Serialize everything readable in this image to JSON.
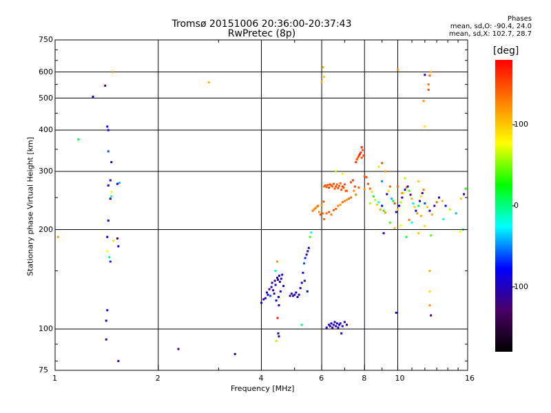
{
  "title_line1": "Tromsø 20151006 20:36:00-20:37:43",
  "title_line2": "RwPretec (8p)",
  "info": {
    "heading": "Phases",
    "line1": "mean, sd,O: -90.4, 24.0",
    "line2": "mean, sd,X: 102.7, 28.7"
  },
  "colorbar": {
    "unit": "[deg]",
    "range": [
      -180,
      180
    ],
    "ticks": [
      "100",
      "0",
      "-100"
    ],
    "colors": [
      "#000000",
      "#4a0066",
      "#0000ff",
      "#00ffff",
      "#00ff00",
      "#ffff00",
      "#ff8000",
      "#ff0000"
    ]
  },
  "chart_data": {
    "type": "scatter",
    "title": "Tromsø 20151006 20:36:00-20:37:43",
    "subtitle": "RwPretec (8p)",
    "xlabel": "Frequency [MHz]",
    "ylabel": "Stationary phase Virtual Height [km]",
    "xscale": "log",
    "yscale": "log",
    "xlim": [
      1,
      16
    ],
    "ylim": [
      75,
      750
    ],
    "xticks": [
      1,
      2,
      4,
      6,
      8,
      10,
      16
    ],
    "yticks": [
      75,
      100,
      200,
      300,
      400,
      500,
      600,
      750
    ],
    "grid": true,
    "color_variable": "phase [deg]",
    "points": [
      [
        1.02,
        190,
        120
      ],
      [
        1.17,
        375,
        10
      ],
      [
        1.29,
        505,
        -90
      ],
      [
        1.4,
        545,
        -130
      ],
      [
        1.47,
        600,
        120
      ],
      [
        1.42,
        410,
        -90
      ],
      [
        1.43,
        400,
        -90
      ],
      [
        1.43,
        345,
        -60
      ],
      [
        1.46,
        320,
        -110
      ],
      [
        1.45,
        282,
        -90
      ],
      [
        1.43,
        272,
        -90
      ],
      [
        1.46,
        260,
        80
      ],
      [
        1.46,
        252,
        -10
      ],
      [
        1.45,
        248,
        -120
      ],
      [
        1.52,
        275,
        -80
      ],
      [
        1.54,
        277,
        -40
      ],
      [
        1.43,
        213,
        -90
      ],
      [
        1.42,
        190,
        -90
      ],
      [
        1.48,
        185,
        90
      ],
      [
        1.52,
        188,
        -130
      ],
      [
        1.53,
        178,
        -90
      ],
      [
        1.42,
        172,
        80
      ],
      [
        1.44,
        165,
        0
      ],
      [
        1.45,
        160,
        -70
      ],
      [
        1.42,
        114,
        -90
      ],
      [
        1.41,
        106,
        -90
      ],
      [
        1.41,
        93,
        -110
      ],
      [
        1.53,
        80,
        -110
      ],
      [
        2.29,
        87,
        -110
      ],
      [
        2.81,
        558,
        110
      ],
      [
        3.35,
        84,
        -120
      ],
      [
        4.0,
        120,
        -100
      ],
      [
        4.06,
        123,
        -90
      ],
      [
        4.11,
        124,
        -110
      ],
      [
        4.15,
        129,
        -100
      ],
      [
        4.18,
        127,
        -80
      ],
      [
        4.22,
        132,
        -120
      ],
      [
        4.25,
        126,
        -60
      ],
      [
        4.28,
        134,
        -90
      ],
      [
        4.3,
        138,
        -110
      ],
      [
        4.33,
        131,
        -100
      ],
      [
        4.36,
        128,
        -120
      ],
      [
        4.38,
        140,
        -110
      ],
      [
        4.4,
        136,
        -100
      ],
      [
        4.42,
        122,
        -90
      ],
      [
        4.45,
        143,
        -110
      ],
      [
        4.47,
        141,
        -120
      ],
      [
        4.49,
        125,
        -80
      ],
      [
        4.51,
        145,
        -100
      ],
      [
        4.53,
        139,
        -100
      ],
      [
        4.55,
        130,
        -100
      ],
      [
        4.57,
        142,
        -90
      ],
      [
        4.6,
        146,
        -100
      ],
      [
        4.64,
        135,
        -110
      ],
      [
        4.45,
        160,
        120
      ],
      [
        4.4,
        150,
        -10
      ],
      [
        4.5,
        118,
        -90
      ],
      [
        4.46,
        108,
        170
      ],
      [
        4.48,
        97,
        -100
      ],
      [
        4.5,
        95,
        -120
      ],
      [
        4.42,
        92,
        60
      ],
      [
        4.85,
        126,
        -100
      ],
      [
        4.9,
        128,
        -120
      ],
      [
        4.95,
        126,
        -110
      ],
      [
        5.0,
        127,
        -100
      ],
      [
        5.05,
        129,
        -90
      ],
      [
        5.1,
        125,
        -100
      ],
      [
        5.15,
        127,
        -110
      ],
      [
        5.2,
        133,
        -100
      ],
      [
        5.25,
        138,
        -90
      ],
      [
        5.29,
        148,
        -100
      ],
      [
        5.33,
        158,
        -60
      ],
      [
        5.37,
        164,
        -70
      ],
      [
        5.42,
        168,
        -120
      ],
      [
        5.46,
        172,
        -100
      ],
      [
        5.5,
        176,
        -100
      ],
      [
        5.55,
        190,
        40
      ],
      [
        5.59,
        196,
        -20
      ],
      [
        5.25,
        103,
        0
      ],
      [
        5.45,
        130,
        -80
      ],
      [
        5.35,
        140,
        -110
      ],
      [
        5.65,
        228,
        130
      ],
      [
        5.7,
        230,
        120
      ],
      [
        5.75,
        232,
        130
      ],
      [
        5.8,
        234,
        120
      ],
      [
        5.85,
        236,
        140
      ],
      [
        5.9,
        226,
        120
      ],
      [
        5.95,
        222,
        150
      ],
      [
        6.0,
        237,
        120
      ],
      [
        6.05,
        224,
        130
      ],
      [
        6.08,
        243,
        150
      ],
      [
        6.1,
        270,
        140
      ],
      [
        6.15,
        272,
        150
      ],
      [
        6.2,
        269,
        140
      ],
      [
        6.25,
        273,
        150
      ],
      [
        6.3,
        268,
        160
      ],
      [
        6.35,
        274,
        145
      ],
      [
        6.4,
        272,
        150
      ],
      [
        6.45,
        270,
        140
      ],
      [
        6.5,
        275,
        150
      ],
      [
        6.55,
        266,
        145
      ],
      [
        6.6,
        270,
        150
      ],
      [
        6.65,
        274,
        140
      ],
      [
        6.7,
        267,
        150
      ],
      [
        6.75,
        271,
        145
      ],
      [
        6.8,
        276,
        140
      ],
      [
        6.85,
        264,
        150
      ],
      [
        6.9,
        270,
        160
      ],
      [
        6.95,
        268,
        145
      ],
      [
        7.0,
        274,
        150
      ],
      [
        7.05,
        262,
        140
      ],
      [
        6.2,
        224,
        140
      ],
      [
        6.3,
        226,
        150
      ],
      [
        6.4,
        222,
        135
      ],
      [
        6.5,
        229,
        145
      ],
      [
        6.6,
        231,
        140
      ],
      [
        6.7,
        236,
        130
      ],
      [
        6.8,
        238,
        120
      ],
      [
        6.9,
        242,
        140
      ],
      [
        7.0,
        244,
        130
      ],
      [
        7.1,
        246,
        120
      ],
      [
        7.2,
        248,
        140
      ],
      [
        7.3,
        250,
        135
      ],
      [
        6.1,
        215,
        140
      ],
      [
        6.6,
        300,
        60
      ],
      [
        6.9,
        295,
        80
      ],
      [
        7.1,
        262,
        150
      ],
      [
        6.05,
        620,
        110
      ],
      [
        6.1,
        580,
        100
      ],
      [
        6.0,
        560,
        110
      ],
      [
        6.2,
        101,
        -100
      ],
      [
        6.3,
        103,
        -110
      ],
      [
        6.35,
        102,
        -90
      ],
      [
        6.4,
        104,
        -100
      ],
      [
        6.45,
        101,
        -120
      ],
      [
        6.5,
        103,
        -100
      ],
      [
        6.55,
        105,
        -110
      ],
      [
        6.6,
        102,
        -90
      ],
      [
        6.65,
        104,
        -100
      ],
      [
        6.7,
        101,
        -110
      ],
      [
        6.75,
        103,
        -100
      ],
      [
        6.8,
        104,
        -90
      ],
      [
        6.9,
        102,
        -100
      ],
      [
        7.0,
        105,
        -110
      ],
      [
        7.1,
        103,
        -100
      ],
      [
        6.85,
        97,
        -100
      ],
      [
        7.3,
        278,
        150
      ],
      [
        7.4,
        282,
        160
      ],
      [
        7.5,
        270,
        150
      ],
      [
        7.55,
        320,
        160
      ],
      [
        7.6,
        326,
        150
      ],
      [
        7.65,
        330,
        140
      ],
      [
        7.7,
        334,
        160
      ],
      [
        7.75,
        338,
        170
      ],
      [
        7.8,
        342,
        160
      ],
      [
        7.85,
        330,
        150
      ],
      [
        7.9,
        348,
        150
      ],
      [
        7.95,
        335,
        160
      ],
      [
        7.85,
        355,
        170
      ],
      [
        7.55,
        255,
        130
      ],
      [
        7.45,
        262,
        120
      ],
      [
        7.7,
        268,
        140
      ],
      [
        8.0,
        290,
        140
      ],
      [
        8.1,
        288,
        150
      ],
      [
        8.2,
        275,
        150
      ],
      [
        8.3,
        266,
        140
      ],
      [
        8.4,
        260,
        90
      ],
      [
        8.5,
        252,
        20
      ],
      [
        8.6,
        246,
        60
      ],
      [
        8.7,
        238,
        100
      ],
      [
        8.8,
        242,
        -20
      ],
      [
        8.9,
        230,
        110
      ],
      [
        9.0,
        236,
        -80
      ],
      [
        9.1,
        228,
        30
      ],
      [
        9.2,
        225,
        120
      ],
      [
        9.3,
        256,
        -100
      ],
      [
        9.4,
        262,
        90
      ],
      [
        9.5,
        270,
        140
      ],
      [
        9.6,
        248,
        -40
      ],
      [
        9.7,
        244,
        20
      ],
      [
        9.8,
        240,
        150
      ],
      [
        9.9,
        226,
        -100
      ],
      [
        10.0,
        230,
        100
      ],
      [
        10.1,
        236,
        -90
      ],
      [
        10.2,
        242,
        60
      ],
      [
        10.3,
        250,
        -110
      ],
      [
        10.4,
        258,
        80
      ],
      [
        10.5,
        264,
        -80
      ],
      [
        10.6,
        268,
        120
      ],
      [
        10.7,
        270,
        -100
      ],
      [
        10.8,
        262,
        40
      ],
      [
        10.9,
        255,
        -120
      ],
      [
        11.0,
        248,
        110
      ],
      [
        11.1,
        240,
        -30
      ],
      [
        11.2,
        234,
        100
      ],
      [
        11.3,
        228,
        -90
      ],
      [
        11.4,
        224,
        120
      ],
      [
        11.5,
        236,
        10
      ],
      [
        11.6,
        244,
        -100
      ],
      [
        11.7,
        252,
        90
      ],
      [
        11.8,
        258,
        -110
      ],
      [
        11.9,
        264,
        130
      ],
      [
        12.0,
        240,
        -60
      ],
      [
        12.2,
        234,
        100
      ],
      [
        12.4,
        228,
        -100
      ],
      [
        12.6,
        222,
        110
      ],
      [
        12.8,
        236,
        -90
      ],
      [
        13.0,
        242,
        140
      ],
      [
        13.2,
        250,
        -100
      ],
      [
        13.5,
        244,
        110
      ],
      [
        13.8,
        236,
        -80
      ],
      [
        14.2,
        230,
        60
      ],
      [
        14.8,
        224,
        -40
      ],
      [
        15.3,
        248,
        100
      ],
      [
        15.6,
        256,
        -110
      ],
      [
        15.8,
        266,
        30
      ],
      [
        9.2,
        300,
        120
      ],
      [
        8.8,
        310,
        90
      ],
      [
        9.0,
        318,
        150
      ],
      [
        10.5,
        286,
        60
      ],
      [
        11.5,
        280,
        100
      ],
      [
        10.0,
        270,
        140
      ],
      [
        9.5,
        210,
        40
      ],
      [
        9.8,
        202,
        110
      ],
      [
        10.2,
        206,
        80
      ],
      [
        10.8,
        214,
        130
      ],
      [
        11.0,
        210,
        -20
      ],
      [
        11.5,
        195,
        100
      ],
      [
        12.0,
        205,
        90
      ],
      [
        12.5,
        192,
        40
      ],
      [
        15.2,
        197,
        80
      ],
      [
        15.5,
        200,
        10
      ],
      [
        8.0,
        265,
        120
      ],
      [
        8.3,
        240,
        60
      ],
      [
        9.0,
        280,
        -50
      ],
      [
        10.3,
        258,
        120
      ],
      [
        11.7,
        220,
        110
      ],
      [
        13.6,
        215,
        -20
      ],
      [
        9.1,
        195,
        -100
      ],
      [
        10.6,
        190,
        10
      ],
      [
        12.4,
        150,
        110
      ],
      [
        12.4,
        130,
        90
      ],
      [
        12.4,
        118,
        120
      ],
      [
        12.5,
        110,
        -120
      ],
      [
        12.0,
        410,
        90
      ],
      [
        11.9,
        490,
        120
      ],
      [
        12.3,
        530,
        150
      ],
      [
        12.0,
        588,
        -110
      ],
      [
        12.5,
        600,
        110
      ],
      [
        10.0,
        610,
        120
      ],
      [
        9.9,
        112,
        -90
      ],
      [
        12.4,
        585,
        140
      ],
      [
        12.3,
        550,
        140
      ]
    ]
  }
}
